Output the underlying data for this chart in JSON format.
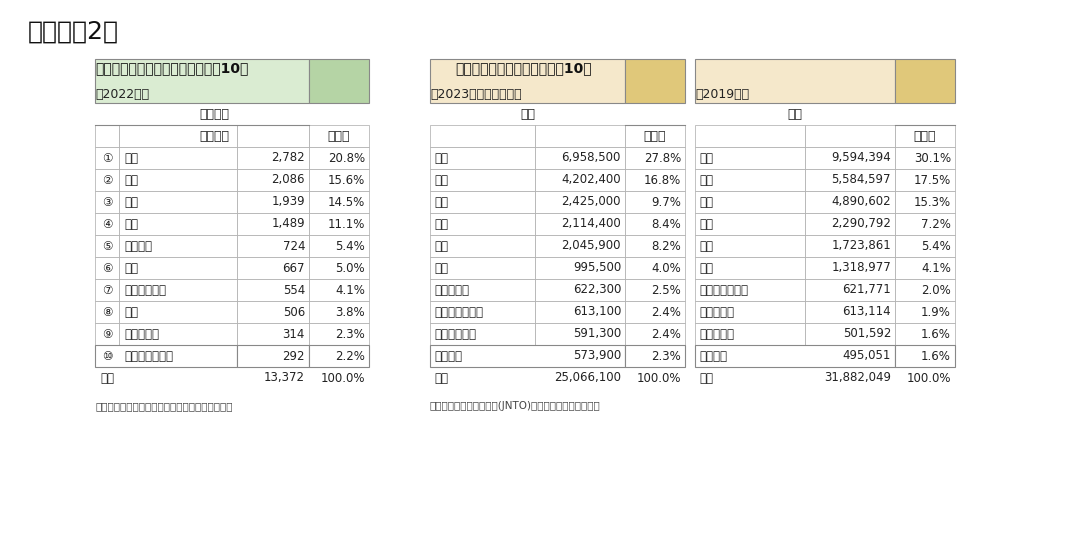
{
  "title": "（図表－2）",
  "subtitle1": "農林水産物輸出（国地域別トップ10）",
  "subtitle2": "訪日外客数（国地域別トップ10）",
  "table1": {
    "year_label": "【2022年】",
    "header_main": "輸出金額",
    "col1_header": "（億円）",
    "col2_header": "シェア",
    "rows": [
      [
        "①",
        "中国",
        "2,782",
        "20.8%"
      ],
      [
        "②",
        "香港",
        "2,086",
        "15.6%"
      ],
      [
        "③",
        "米国",
        "1,939",
        "14.5%"
      ],
      [
        "④",
        "台湾",
        "1,489",
        "11.1%"
      ],
      [
        "⑤",
        "ベトナム",
        "724",
        "5.4%"
      ],
      [
        "⑥",
        "韓国",
        "667",
        "5.0%"
      ],
      [
        "⑦",
        "シンガポール",
        "554",
        "4.1%"
      ],
      [
        "⑧",
        "タイ",
        "506",
        "3.8%"
      ],
      [
        "⑨",
        "フィリピン",
        "314",
        "2.3%"
      ],
      [
        "⑩",
        "オーストラリア",
        "292",
        "2.2%"
      ]
    ],
    "footer": [
      "総数",
      "13,372",
      "100.0%"
    ],
    "source": "（出典）日本農林水産省のデータを元に筆者作成",
    "header_color": "#daecd2",
    "share_color": "#b5d4a5"
  },
  "table2": {
    "year_label": "【2023年（推計値）】",
    "col_header": "総数",
    "col2_header": "シェア",
    "rows": [
      [
        "韓国",
        "6,958,500",
        "27.8%"
      ],
      [
        "台湾",
        "4,202,400",
        "16.8%"
      ],
      [
        "中国",
        "2,425,000",
        "9.7%"
      ],
      [
        "香港",
        "2,114,400",
        "8.4%"
      ],
      [
        "米国",
        "2,045,900",
        "8.2%"
      ],
      [
        "タイ",
        "995,500",
        "4.0%"
      ],
      [
        "フィリピン",
        "622,300",
        "2.5%"
      ],
      [
        "オーストラリア",
        "613,100",
        "2.4%"
      ],
      [
        "シンガポール",
        "591,300",
        "2.4%"
      ],
      [
        "ベトナム",
        "573,900",
        "2.3%"
      ]
    ],
    "footer": [
      "総数",
      "25,066,100",
      "100.0%"
    ],
    "source": "（出典）日本政府観光局(JNTO)のデータを元に筆者作成",
    "header_color": "#f5e8cb",
    "share_color": "#e0c87a"
  },
  "table3": {
    "year_label": "【2019年】",
    "col_header": "総数",
    "col2_header": "シェア",
    "rows": [
      [
        "中国",
        "9,594,394",
        "30.1%"
      ],
      [
        "韓国",
        "5,584,597",
        "17.5%"
      ],
      [
        "台湾",
        "4,890,602",
        "15.3%"
      ],
      [
        "香港",
        "2,290,792",
        "7.2%"
      ],
      [
        "米国",
        "1,723,861",
        "5.4%"
      ],
      [
        "タイ",
        "1,318,977",
        "4.1%"
      ],
      [
        "オーストラリア",
        "621,771",
        "2.0%"
      ],
      [
        "フィリピン",
        "613,114",
        "1.9%"
      ],
      [
        "マレーシア",
        "501,592",
        "1.6%"
      ],
      [
        "ベトナム",
        "495,051",
        "1.6%"
      ]
    ],
    "footer": [
      "総数",
      "31,882,049",
      "100.0%"
    ],
    "header_color": "#f5e8cb",
    "share_color": "#e0c87a"
  },
  "bg_color": "#ffffff"
}
